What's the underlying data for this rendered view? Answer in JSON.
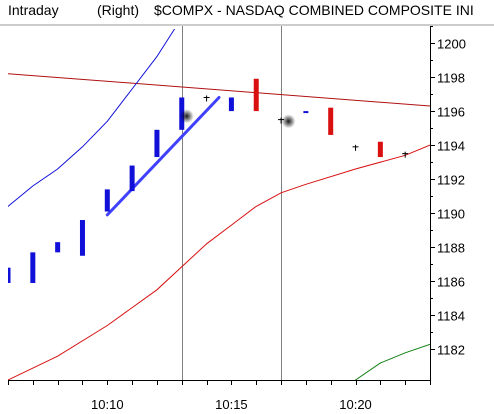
{
  "chart_data": {
    "type": "candlestick",
    "header": {
      "timeframe": "Intraday",
      "scale_side": "(Right)",
      "title": "$COMPX - NASDAQ COMBINED COMPOSITE INI"
    },
    "x_axis": {
      "interval_minutes": 1,
      "tick_labels": [
        "10:10",
        "10:15",
        "10:20"
      ]
    },
    "y_axis": {
      "side": "right",
      "ylim": [
        1180.2,
        1201.0
      ],
      "ticks": [
        1182,
        1184,
        1186,
        1188,
        1190,
        1192,
        1194,
        1196,
        1198,
        1200
      ]
    },
    "grid": false,
    "colors": {
      "up": "#1010d8",
      "down": "#d81010",
      "doji": "#000000",
      "resistance": "#b01010",
      "upper_band": "#1010d8",
      "lower_band": "#d81010",
      "tail_line": "#108010",
      "channel": "#4040ff",
      "vline": "#808080"
    },
    "candles": [
      {
        "time": "10:06",
        "open": 1185.9,
        "close": 1186.8,
        "color": "up"
      },
      {
        "time": "10:07",
        "open": 1185.9,
        "close": 1187.7,
        "color": "up"
      },
      {
        "time": "10:08",
        "open": 1187.7,
        "close": 1188.3,
        "color": "up"
      },
      {
        "time": "10:09",
        "open": 1187.5,
        "close": 1189.6,
        "color": "up"
      },
      {
        "time": "10:10",
        "open": 1190.1,
        "close": 1191.4,
        "color": "up"
      },
      {
        "time": "10:11",
        "open": 1191.3,
        "close": 1192.8,
        "color": "up"
      },
      {
        "time": "10:12",
        "open": 1193.3,
        "close": 1194.9,
        "color": "up"
      },
      {
        "time": "10:13",
        "open": 1194.9,
        "close": 1196.8,
        "color": "up"
      },
      {
        "time": "10:14",
        "open": 1196.7,
        "close": 1196.8,
        "color": "doji"
      },
      {
        "time": "10:15",
        "open": 1196.0,
        "close": 1196.8,
        "color": "up"
      },
      {
        "time": "10:16",
        "open": 1197.9,
        "close": 1196.0,
        "color": "down"
      },
      {
        "time": "10:17",
        "open": 1195.5,
        "close": 1195.5,
        "color": "doji"
      },
      {
        "time": "10:18",
        "open": 1195.9,
        "close": 1196.0,
        "color": "up"
      },
      {
        "time": "10:19",
        "open": 1196.2,
        "close": 1194.6,
        "color": "down"
      },
      {
        "time": "10:20",
        "open": 1193.9,
        "close": 1193.9,
        "color": "doji"
      },
      {
        "time": "10:21",
        "open": 1194.2,
        "close": 1193.3,
        "color": "down"
      },
      {
        "time": "10:22",
        "open": 1193.5,
        "close": 1193.5,
        "color": "doji"
      }
    ],
    "lines": [
      {
        "name_visible": false,
        "role": "resistance",
        "points": [
          [
            "10:06",
            1198.2
          ],
          [
            "10:23",
            1196.3
          ]
        ]
      },
      {
        "name_visible": false,
        "role": "upper_band",
        "points": [
          [
            "10:06",
            1190.4
          ],
          [
            "10:07",
            1191.6
          ],
          [
            "10:08",
            1192.6
          ],
          [
            "10:09",
            1193.9
          ],
          [
            "10:10",
            1195.4
          ],
          [
            "10:11",
            1197.3
          ],
          [
            "10:12",
            1199.2
          ],
          [
            "10:12.7",
            1200.8
          ]
        ]
      },
      {
        "name_visible": false,
        "role": "lower_band",
        "points": [
          [
            "10:06",
            1180.2
          ],
          [
            "10:08",
            1181.6
          ],
          [
            "10:10",
            1183.4
          ],
          [
            "10:12",
            1185.5
          ],
          [
            "10:14",
            1188.2
          ],
          [
            "10:15",
            1189.3
          ],
          [
            "10:16",
            1190.4
          ],
          [
            "10:17",
            1191.2
          ],
          [
            "10:18",
            1191.7
          ],
          [
            "10:20",
            1192.6
          ],
          [
            "10:22",
            1193.4
          ],
          [
            "10:23",
            1194.0
          ]
        ]
      },
      {
        "name_visible": false,
        "role": "tail_line",
        "points": [
          [
            "10:20",
            1180.2
          ],
          [
            "10:21",
            1181.2
          ],
          [
            "10:22",
            1181.8
          ],
          [
            "10:23",
            1182.3
          ]
        ]
      },
      {
        "name_visible": false,
        "role": "channel",
        "points": [
          [
            "10:10",
            1189.9
          ],
          [
            "10:14.5",
            1196.8
          ]
        ]
      }
    ],
    "vertical_lines": [
      "10:13",
      "10:17"
    ],
    "markers": [
      {
        "time": "10:13.2",
        "value": 1195.7
      },
      {
        "time": "10:17.3",
        "value": 1195.4
      }
    ]
  }
}
